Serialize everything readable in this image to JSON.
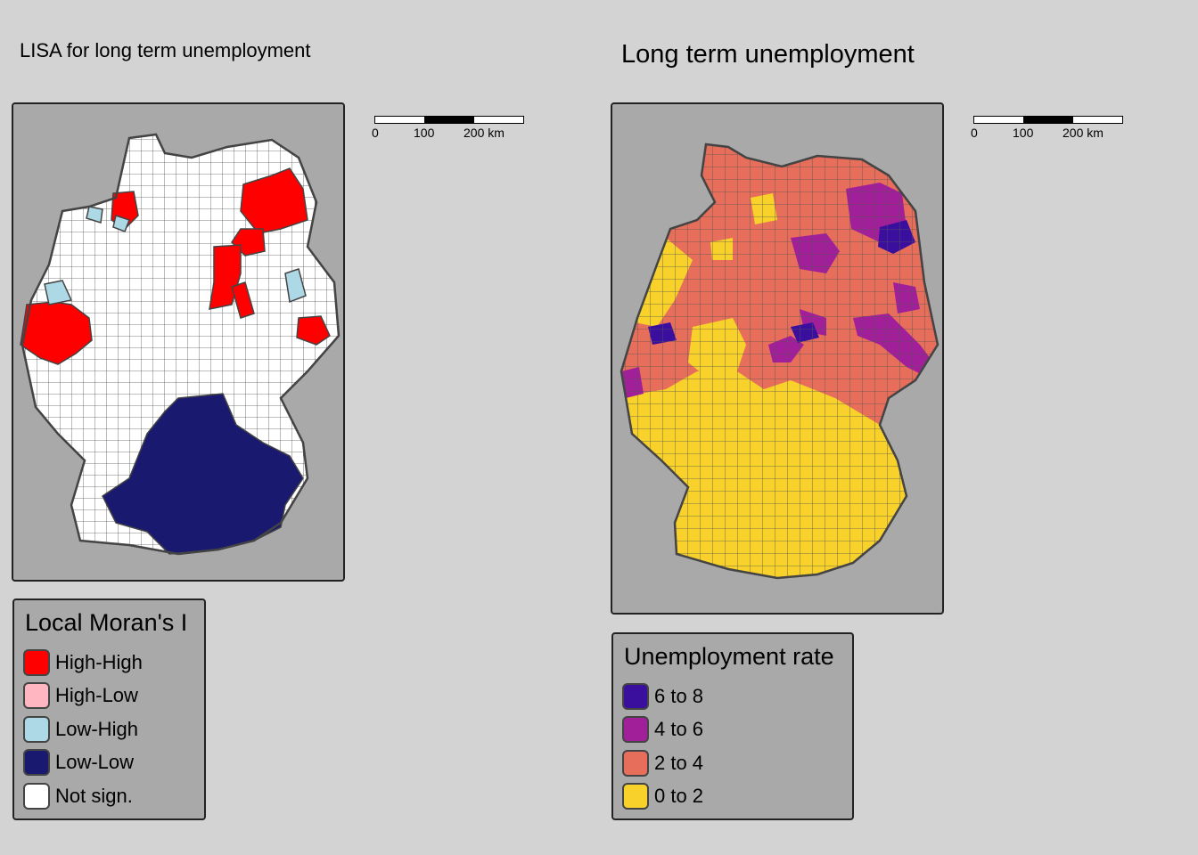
{
  "left_panel": {
    "title": "LISA for long term unemployment",
    "scale": {
      "ticks": [
        "0",
        "100",
        "200 km"
      ]
    },
    "legend": {
      "title": "Local Moran's I",
      "items": [
        {
          "label": "High-High",
          "color": "#ff0000"
        },
        {
          "label": "High-Low",
          "color": "#ffb6c1"
        },
        {
          "label": "Low-High",
          "color": "#add8e6"
        },
        {
          "label": "Low-Low",
          "color": "#191970"
        },
        {
          "label": "Not sign.",
          "color": "#ffffff"
        }
      ]
    }
  },
  "right_panel": {
    "title": "Long term unemployment",
    "scale": {
      "ticks": [
        "0",
        "100",
        "200 km"
      ]
    },
    "legend": {
      "title": "Unemployment rate",
      "items": [
        {
          "label": "6 to 8",
          "color": "#3b0f9e"
        },
        {
          "label": "4 to 6",
          "color": "#a21f9a"
        },
        {
          "label": "2 to 4",
          "color": "#e66e5b"
        },
        {
          "label": "0 to 2",
          "color": "#f8d12a"
        }
      ]
    }
  }
}
